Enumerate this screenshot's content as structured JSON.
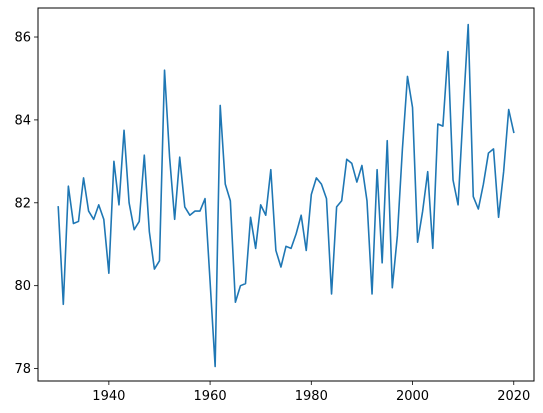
{
  "chart_data": {
    "type": "line",
    "title": "",
    "xlabel": "",
    "ylabel": "",
    "xlim": [
      1926,
      2024
    ],
    "ylim": [
      77.7,
      86.7
    ],
    "x_ticks": [
      1940,
      1960,
      1980,
      2000,
      2020
    ],
    "x_tick_labels": [
      "1940",
      "1960",
      "1980",
      "2000",
      "2020"
    ],
    "y_ticks": [
      78,
      80,
      82,
      84,
      86
    ],
    "y_tick_labels": [
      "78",
      "80",
      "82",
      "84",
      "86"
    ],
    "grid": false,
    "legend": "none",
    "series": [
      {
        "color": "#1f77b4",
        "x": [
          1930,
          1931,
          1932,
          1933,
          1934,
          1935,
          1936,
          1937,
          1938,
          1939,
          1940,
          1941,
          1942,
          1943,
          1944,
          1945,
          1946,
          1947,
          1948,
          1949,
          1950,
          1951,
          1952,
          1953,
          1954,
          1955,
          1956,
          1957,
          1958,
          1959,
          1960,
          1961,
          1962,
          1963,
          1964,
          1965,
          1966,
          1967,
          1968,
          1969,
          1970,
          1971,
          1972,
          1973,
          1974,
          1975,
          1976,
          1977,
          1978,
          1979,
          1980,
          1981,
          1982,
          1983,
          1984,
          1985,
          1986,
          1987,
          1988,
          1989,
          1990,
          1991,
          1992,
          1993,
          1994,
          1995,
          1996,
          1997,
          1998,
          1999,
          2000,
          2001,
          2002,
          2003,
          2004,
          2005,
          2006,
          2007,
          2008,
          2009,
          2010,
          2011,
          2012,
          2013,
          2014,
          2015,
          2016,
          2017,
          2018,
          2019,
          2020
        ],
        "values": [
          81.9,
          79.55,
          82.4,
          81.5,
          81.55,
          82.6,
          81.8,
          81.6,
          81.95,
          81.6,
          80.3,
          83.0,
          81.95,
          83.75,
          82.0,
          81.35,
          81.55,
          83.15,
          81.3,
          80.4,
          80.6,
          85.2,
          83.1,
          81.6,
          83.1,
          81.9,
          81.7,
          81.8,
          81.8,
          82.1,
          80.1,
          78.05,
          84.35,
          82.45,
          82.05,
          79.6,
          80.0,
          80.05,
          81.65,
          80.9,
          81.95,
          81.7,
          82.8,
          80.85,
          80.45,
          80.95,
          80.9,
          81.25,
          81.7,
          80.85,
          82.2,
          82.6,
          82.45,
          82.1,
          79.8,
          81.9,
          82.05,
          83.05,
          82.95,
          82.5,
          82.9,
          82.05,
          79.8,
          82.8,
          80.55,
          83.5,
          79.95,
          81.2,
          83.3,
          85.05,
          84.3,
          81.05,
          81.8,
          82.75,
          80.9,
          83.9,
          83.85,
          85.65,
          82.55,
          81.95,
          84.2,
          86.3,
          82.15,
          81.85,
          82.45,
          83.2,
          83.3,
          81.65,
          82.75,
          84.25,
          83.7
        ]
      }
    ]
  }
}
